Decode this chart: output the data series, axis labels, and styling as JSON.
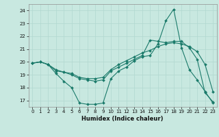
{
  "xlabel": "Humidex (Indice chaleur)",
  "bg_color": "#c8e8e0",
  "grid_color": "#b0d8d0",
  "line_color": "#1a7a6a",
  "xlim": [
    -0.5,
    23.5
  ],
  "ylim": [
    16.5,
    24.5
  ],
  "yticks": [
    17,
    18,
    19,
    20,
    21,
    22,
    23,
    24
  ],
  "xticks": [
    0,
    1,
    2,
    3,
    4,
    5,
    6,
    7,
    8,
    9,
    10,
    11,
    12,
    13,
    14,
    15,
    16,
    17,
    18,
    19,
    20,
    21,
    22,
    23
  ],
  "line1_x": [
    0,
    1,
    2,
    3,
    4,
    5,
    6,
    7,
    8,
    9,
    10,
    11,
    12,
    13,
    14,
    15,
    16,
    17,
    18,
    19,
    20,
    21,
    22,
    23
  ],
  "line1_y": [
    19.9,
    20.0,
    19.8,
    19.1,
    18.5,
    18.0,
    16.8,
    16.7,
    16.7,
    16.8,
    18.7,
    19.3,
    19.6,
    20.1,
    20.4,
    20.5,
    21.4,
    23.2,
    24.1,
    21.1,
    19.4,
    18.6,
    17.7,
    16.8
  ],
  "line2_x": [
    0,
    1,
    2,
    3,
    4,
    5,
    6,
    7,
    8,
    9,
    10,
    11,
    12,
    13,
    14,
    15,
    16,
    17,
    18,
    19,
    20,
    21,
    22,
    23
  ],
  "line2_y": [
    19.9,
    20.0,
    19.8,
    19.3,
    19.2,
    19.1,
    18.8,
    18.7,
    18.7,
    18.8,
    19.4,
    19.8,
    20.1,
    20.4,
    20.7,
    20.9,
    21.2,
    21.4,
    21.5,
    21.4,
    21.2,
    20.8,
    19.8,
    17.7
  ],
  "line3_x": [
    0,
    1,
    2,
    3,
    4,
    5,
    6,
    7,
    8,
    9,
    10,
    11,
    12,
    13,
    14,
    15,
    16,
    17,
    18,
    19,
    20,
    21,
    22,
    23
  ],
  "line3_y": [
    19.9,
    20.0,
    19.8,
    19.4,
    19.2,
    19.0,
    18.7,
    18.6,
    18.5,
    18.6,
    19.3,
    19.6,
    19.9,
    20.2,
    20.5,
    21.7,
    21.6,
    21.5,
    21.6,
    21.6,
    21.1,
    20.2,
    17.6,
    16.9
  ],
  "figsize": [
    3.2,
    2.0
  ],
  "dpi": 100
}
